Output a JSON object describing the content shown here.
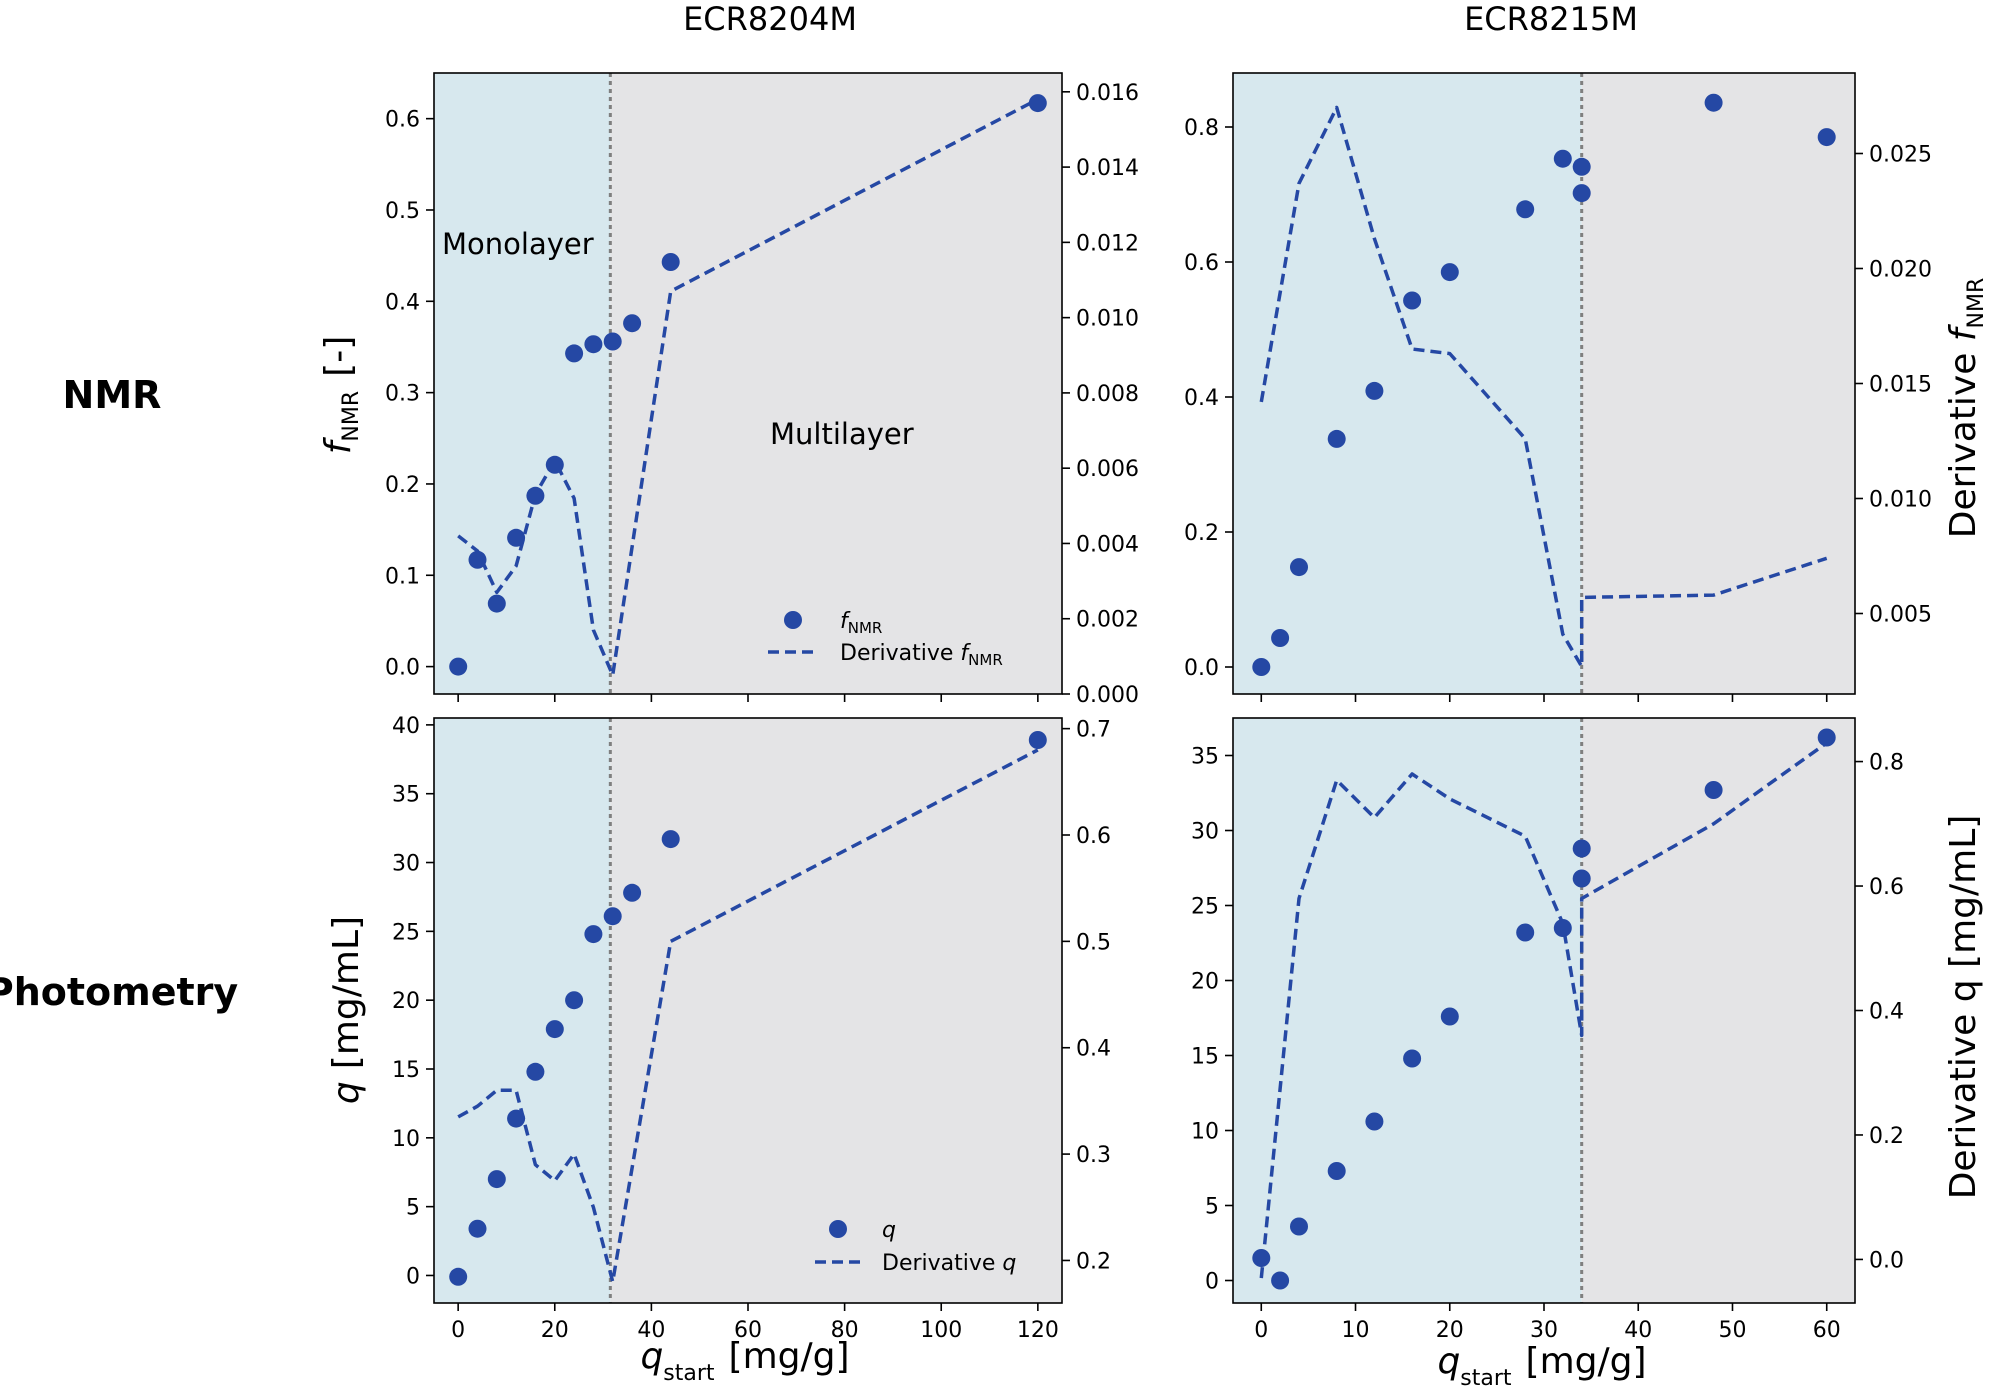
{
  "colors": {
    "series": "#2548a4",
    "monolayer_bg": "#d7e8ee",
    "multilayer_bg": "#e4e4e6",
    "monolayer_text": "#2a4a9e",
    "multilayer_text": "#3b464e",
    "boundary": "#7f7f7f"
  },
  "labels": {
    "col_left": "ECR8204M",
    "col_right": "ECR8215M",
    "row_top": "NMR",
    "row_bottom": "Photometry",
    "monolayer": "Monolayer",
    "multilayer": "Multilayer",
    "y_top_main": "f",
    "y_top_sub": "NMR",
    "y_top_unit": "[-]",
    "y_bottom_main": "q",
    "y_bottom_unit": "[mg/mL]",
    "y_top_right_main": "Derivative ",
    "y_top_right_f": "f",
    "y_top_right_sub": "NMR",
    "y_bottom_right": "Derivative q [mg/mL]",
    "x_main": "q",
    "x_sub": "start",
    "x_unit": "[mg/g]",
    "legend_top_scatter": "f",
    "legend_top_scatter_sub": "NMR",
    "legend_top_line": "Derivative ",
    "legend_top_line_f": "f",
    "legend_top_line_sub": "NMR",
    "legend_bottom_scatter": "q",
    "legend_bottom_line": "Derivative ",
    "legend_bottom_line_q": "q"
  },
  "chart_data": [
    {
      "id": "nmr_ecr8204m",
      "type": "scatter+line",
      "column": "ECR8204M",
      "row": "NMR",
      "x_range": [
        -5,
        125
      ],
      "x_ticks": [
        0,
        20,
        40,
        60,
        80,
        100,
        120
      ],
      "ylim": [
        -0.03,
        0.65
      ],
      "y_ticks": [
        0.0,
        0.1,
        0.2,
        0.3,
        0.4,
        0.5,
        0.6
      ],
      "y_decimals": 1,
      "y2lim": [
        0.0,
        0.0165
      ],
      "y2_ticks": [
        0.0,
        0.002,
        0.004,
        0.006,
        0.008,
        0.01,
        0.012,
        0.014,
        0.016
      ],
      "y2_decimals": 3,
      "boundary_x": 31.5,
      "scatter": {
        "name": "f_NMR",
        "x": [
          0,
          4,
          8,
          12,
          16,
          20,
          24,
          28,
          32,
          36,
          44,
          120
        ],
        "y": [
          0.0,
          0.117,
          0.069,
          0.141,
          0.187,
          0.221,
          0.343,
          0.353,
          0.356,
          0.376,
          0.443,
          0.617
        ]
      },
      "line": {
        "name": "Derivative f_NMR",
        "x": [
          0,
          4,
          8,
          12,
          16,
          20,
          24,
          28,
          32,
          44,
          120
        ],
        "y": [
          0.0042,
          0.0038,
          0.0027,
          0.0034,
          0.0053,
          0.0062,
          0.0052,
          0.0017,
          0.0005,
          0.0107,
          0.0158
        ]
      }
    },
    {
      "id": "nmr_ecr8215m",
      "type": "scatter+line",
      "column": "ECR8215M",
      "row": "NMR",
      "x_range": [
        -3,
        63
      ],
      "x_ticks": [
        0,
        10,
        20,
        30,
        40,
        50,
        60
      ],
      "ylim": [
        -0.04,
        0.88
      ],
      "y_ticks": [
        0.0,
        0.2,
        0.4,
        0.6,
        0.8
      ],
      "y_decimals": 1,
      "y2lim": [
        0.0015,
        0.0285
      ],
      "y2_ticks": [
        0.005,
        0.01,
        0.015,
        0.02,
        0.025
      ],
      "y2_decimals": 3,
      "boundary_x": 34,
      "scatter": {
        "name": "f_NMR",
        "x": [
          0,
          2,
          4,
          8,
          12,
          16,
          20,
          28,
          32,
          34,
          34,
          48,
          60
        ],
        "y": [
          0.0,
          0.043,
          0.148,
          0.338,
          0.409,
          0.543,
          0.585,
          0.678,
          0.753,
          0.741,
          0.702,
          0.836,
          0.785
        ]
      },
      "line": {
        "name": "Derivative f_NMR",
        "x": [
          0,
          4,
          8,
          12,
          16,
          20,
          28,
          32,
          34,
          34,
          48,
          60
        ],
        "y": [
          0.0142,
          0.0237,
          0.027,
          0.0213,
          0.0165,
          0.0163,
          0.0126,
          0.0041,
          0.0027,
          0.0057,
          0.0058,
          0.0074
        ]
      }
    },
    {
      "id": "photometry_ecr8204m",
      "type": "scatter+line",
      "column": "ECR8204M",
      "row": "Photometry",
      "x_range": [
        -5,
        125
      ],
      "x_ticks": [
        0,
        20,
        40,
        60,
        80,
        100,
        120
      ],
      "ylim": [
        -2.0,
        40.5
      ],
      "y_ticks": [
        0,
        5,
        10,
        15,
        20,
        25,
        30,
        35,
        40
      ],
      "y_decimals": 0,
      "y2lim": [
        0.16,
        0.71
      ],
      "y2_ticks": [
        0.2,
        0.3,
        0.4,
        0.5,
        0.6,
        0.7
      ],
      "y2_decimals": 1,
      "boundary_x": 31.5,
      "scatter": {
        "name": "q",
        "x": [
          0,
          4,
          8,
          12,
          16,
          20,
          24,
          28,
          32,
          36,
          44,
          120
        ],
        "y": [
          -0.1,
          3.4,
          7.0,
          11.4,
          14.8,
          17.9,
          20.0,
          24.8,
          26.1,
          27.8,
          31.7,
          38.9
        ]
      },
      "line": {
        "name": "Derivative q",
        "x": [
          0,
          4,
          8,
          12,
          16,
          20,
          24,
          28,
          32,
          44,
          120
        ],
        "y": [
          0.335,
          0.345,
          0.36,
          0.36,
          0.29,
          0.275,
          0.3,
          0.25,
          0.18,
          0.5,
          0.68
        ]
      }
    },
    {
      "id": "photometry_ecr8215m",
      "type": "scatter+line",
      "column": "ECR8215M",
      "row": "Photometry",
      "x_range": [
        -3,
        63
      ],
      "x_ticks": [
        0,
        10,
        20,
        30,
        40,
        50,
        60
      ],
      "ylim": [
        -1.5,
        37.5
      ],
      "y_ticks": [
        0,
        5,
        10,
        15,
        20,
        25,
        30,
        35
      ],
      "y_decimals": 0,
      "y2lim": [
        -0.07,
        0.87
      ],
      "y2_ticks": [
        0.0,
        0.2,
        0.4,
        0.6,
        0.8
      ],
      "y2_decimals": 1,
      "boundary_x": 34,
      "scatter": {
        "name": "q",
        "x": [
          0,
          2,
          4,
          8,
          12,
          16,
          20,
          28,
          32,
          34,
          34,
          48,
          60
        ],
        "y": [
          1.5,
          0.0,
          3.6,
          7.3,
          10.6,
          14.8,
          17.6,
          23.2,
          23.5,
          28.8,
          26.8,
          32.7,
          36.2
        ]
      },
      "line": {
        "name": "Derivative q",
        "x": [
          0,
          4,
          8,
          12,
          16,
          20,
          28,
          32,
          34,
          34,
          48,
          60
        ],
        "y": [
          -0.03,
          0.58,
          0.77,
          0.71,
          0.78,
          0.74,
          0.68,
          0.54,
          0.36,
          0.58,
          0.7,
          0.83
        ]
      }
    }
  ]
}
